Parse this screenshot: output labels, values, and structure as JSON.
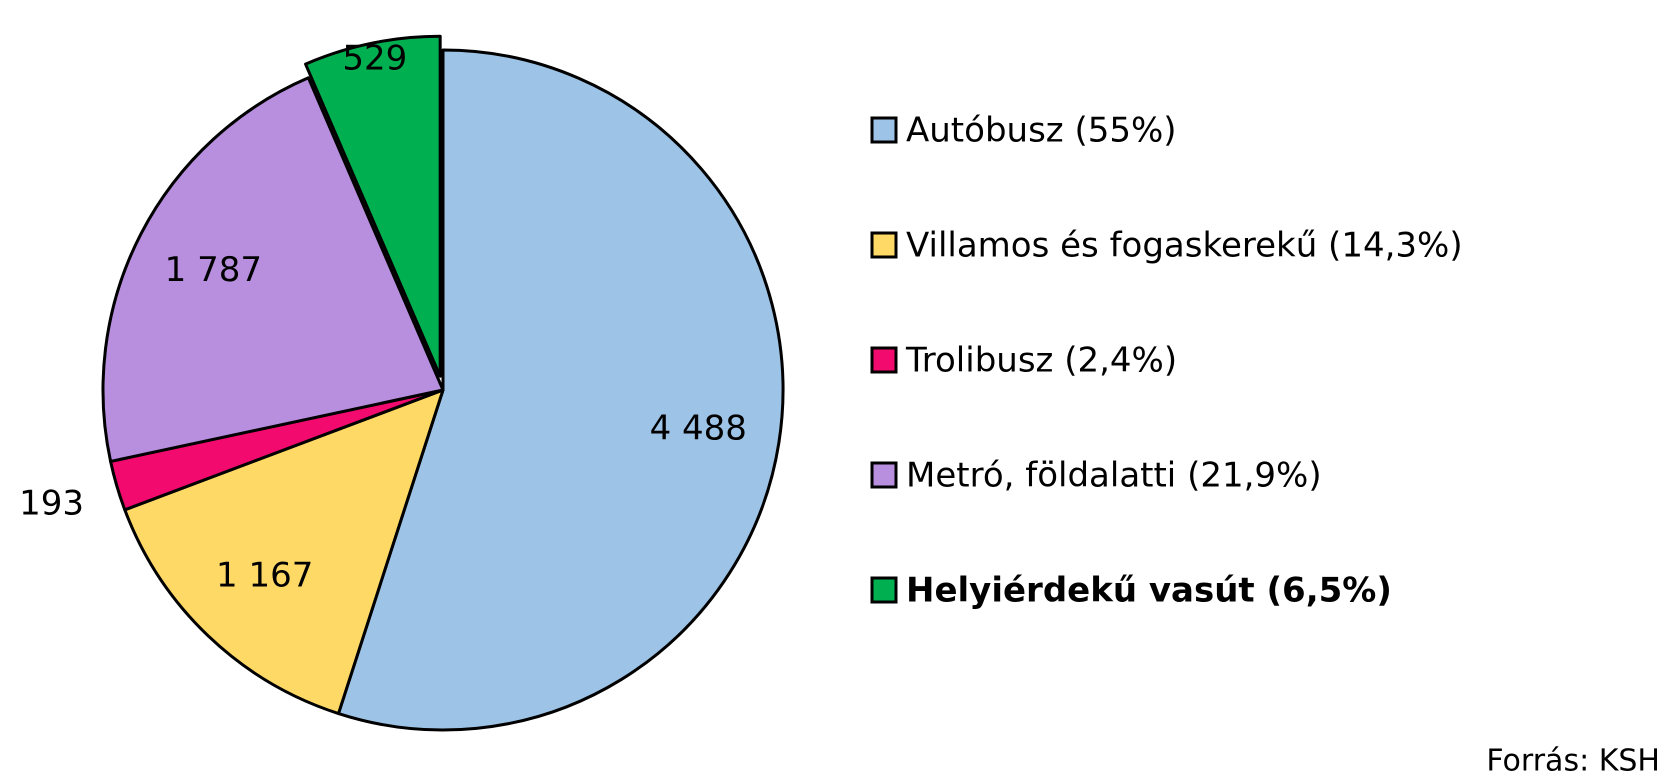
{
  "chart_data": {
    "type": "pie",
    "categories": [
      "Autóbusz (55%)",
      "Villamos és fogaskerekű (14,3%)",
      "Trolibusz (2,4%)",
      "Metró, földalatti (21,9%)",
      "Helyiérdekű vasút (6,5%)"
    ],
    "values": [
      4488,
      1167,
      193,
      1787,
      529
    ],
    "value_labels": [
      "4 488",
      "1 167",
      "193",
      "1 787",
      "529"
    ],
    "colors": [
      "#9dc3e6",
      "#ffd966",
      "#f20a6e",
      "#b88fdf",
      "#00b050"
    ],
    "legend": "right",
    "note": "Forrás: KSH"
  }
}
